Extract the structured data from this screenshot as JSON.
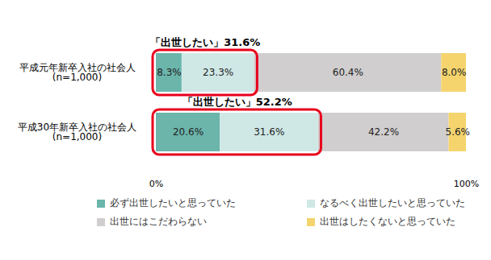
{
  "chart_data": {
    "type": "bar",
    "orientation": "horizontal",
    "stacked": true,
    "data_labels": true,
    "grid": false,
    "legend": "bottom",
    "categories": [
      "平成元年新卒入社の社会人\n(n=1,000)",
      "平成30年新卒入社の社会人\n(n=1,000)"
    ],
    "annotations": [
      "「出世したい」31.6%",
      "「出世したい」52.2%"
    ],
    "series": [
      {
        "name": "必ず出世したいと思っていた",
        "color": "#6bb5ab",
        "values": [
          8.3,
          20.6
        ],
        "value_labels": [
          "8.3%",
          "20.6%"
        ]
      },
      {
        "name": "なるべく出世したいと思っていた",
        "color": "#cfe8e6",
        "values": [
          23.3,
          31.6
        ],
        "value_labels": [
          "23.3%",
          "31.6%"
        ]
      },
      {
        "name": "出世にはこだわらない",
        "color": "#d0cece",
        "values": [
          60.4,
          42.2
        ],
        "value_labels": [
          "60.4%",
          "42.2%"
        ]
      },
      {
        "name": "出世はしたくないと思っていた",
        "color": "#f5d46e",
        "values": [
          8.0,
          5.6
        ],
        "value_labels": [
          "8.0%",
          "5.6%"
        ]
      }
    ],
    "xlim": [
      0,
      100
    ],
    "xticks": [
      {
        "value": 0,
        "label": "0%"
      },
      {
        "value": 100,
        "label": "100%"
      }
    ]
  }
}
